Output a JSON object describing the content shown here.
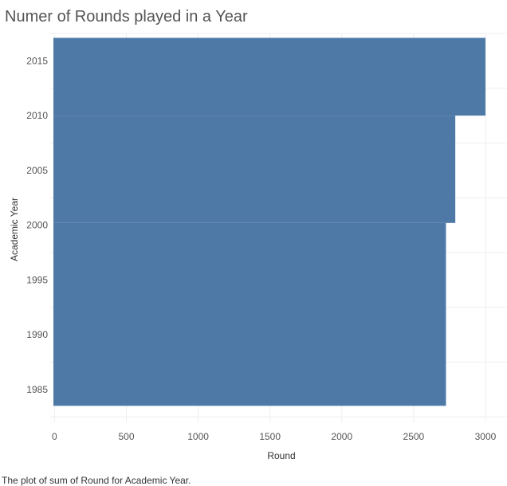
{
  "title": "Numer of Rounds played in a Year",
  "caption": "The plot of sum of Round for Academic Year.",
  "colors": {
    "bar": "#4e79a7",
    "grid": "#eeeeee",
    "axis_text": "#555555"
  },
  "chart_data": {
    "type": "area",
    "orientation": "horizontal",
    "title": "Numer of Rounds played in a Year",
    "xlabel": "Round",
    "ylabel": "Academic Year",
    "xlim": [
      -30,
      3150
    ],
    "ylim": [
      1982,
      2017.5
    ],
    "x_ticks": [
      0,
      500,
      1000,
      1500,
      2000,
      2500,
      3000
    ],
    "y_ticks": [
      1985,
      1990,
      1995,
      2000,
      2005,
      2010,
      2015
    ],
    "grid": true,
    "series": [
      {
        "segments": [
          {
            "from_year": 1983.5,
            "to_year": 2000.2,
            "value": 2725
          },
          {
            "from_year": 2000.2,
            "to_year": 2010.0,
            "value": 2790
          },
          {
            "from_year": 2010.0,
            "to_year": 2017.1,
            "value": 3000
          }
        ]
      }
    ]
  }
}
